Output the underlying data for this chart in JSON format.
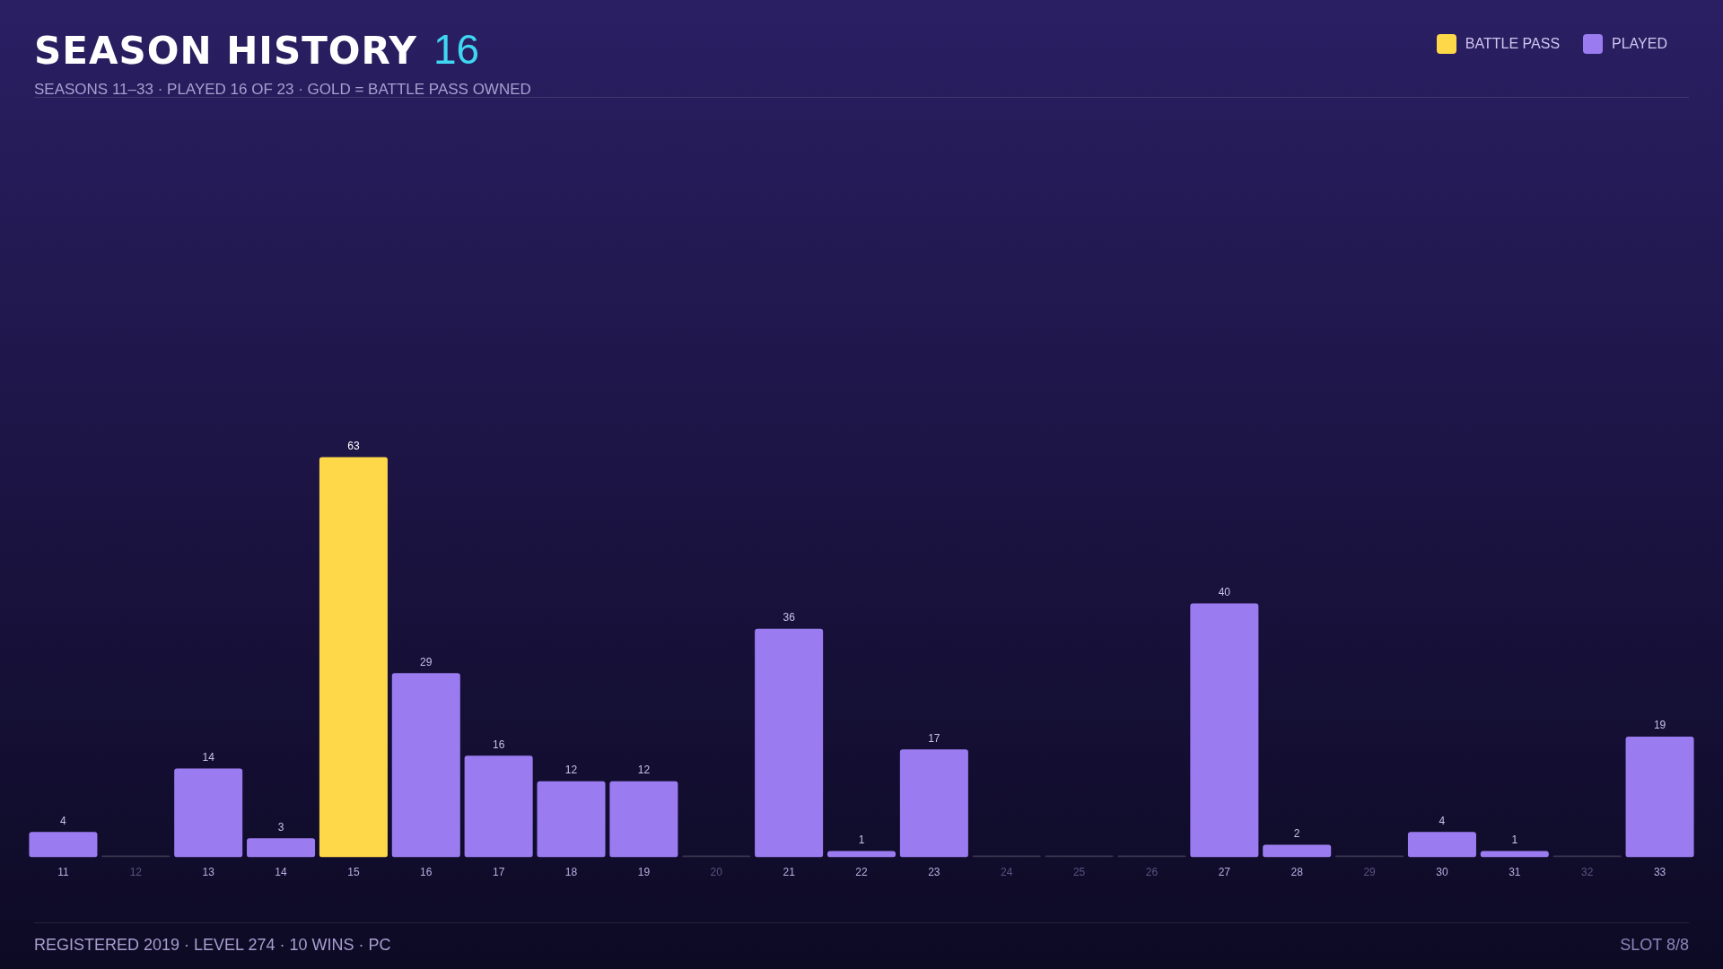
{
  "chart_data": {
    "type": "bar",
    "title": "SEASON HISTORY",
    "subtitle": "SEASONS 11–33 · PLAYED 16 OF 23 · GOLD = BATTLE PASS OWNED",
    "categories": [
      "11",
      "12",
      "13",
      "14",
      "15",
      "16",
      "17",
      "18",
      "19",
      "20",
      "21",
      "22",
      "23",
      "24",
      "25",
      "26",
      "27",
      "28",
      "29",
      "30",
      "31",
      "32",
      "33"
    ],
    "series": [
      {
        "name": "BATTLE PASS",
        "color": "#ffd84a",
        "values": [
          null,
          null,
          null,
          null,
          63,
          null,
          null,
          null,
          null,
          null,
          null,
          null,
          null,
          null,
          null,
          null,
          null,
          null,
          null,
          null,
          null,
          null,
          null
        ],
        "value_labels": [
          null,
          null,
          null,
          null,
          "63",
          null,
          null,
          null,
          null,
          null,
          null,
          null,
          null,
          null,
          null,
          null,
          null,
          null,
          null,
          null,
          null,
          null,
          null
        ]
      },
      {
        "name": "PLAYED",
        "color": "#9b7cf0",
        "values": [
          4,
          null,
          14,
          3,
          null,
          29,
          16,
          12,
          12,
          null,
          36,
          1,
          17,
          null,
          null,
          null,
          40,
          2,
          null,
          4,
          1,
          null,
          19
        ],
        "value_labels": [
          "4",
          null,
          "14",
          "3",
          null,
          "29",
          "16",
          "12",
          "12",
          null,
          "36",
          "1",
          "17",
          null,
          null,
          null,
          "40",
          "2",
          null,
          "4",
          "1",
          null,
          "19"
        ]
      },
      {
        "color": "#3a3450",
        "values": [
          null,
          0,
          null,
          null,
          null,
          null,
          null,
          null,
          null,
          0,
          null,
          null,
          null,
          0,
          0,
          0,
          null,
          null,
          0,
          null,
          null,
          0,
          null
        ]
      }
    ],
    "legend": "top right",
    "grid": false,
    "tick_labels": "x",
    "annotations": [
      "16",
      "REGISTERED 2019 · LEVEL 274 · 10 WINS · PC",
      "SLOT 8/8"
    ]
  }
}
